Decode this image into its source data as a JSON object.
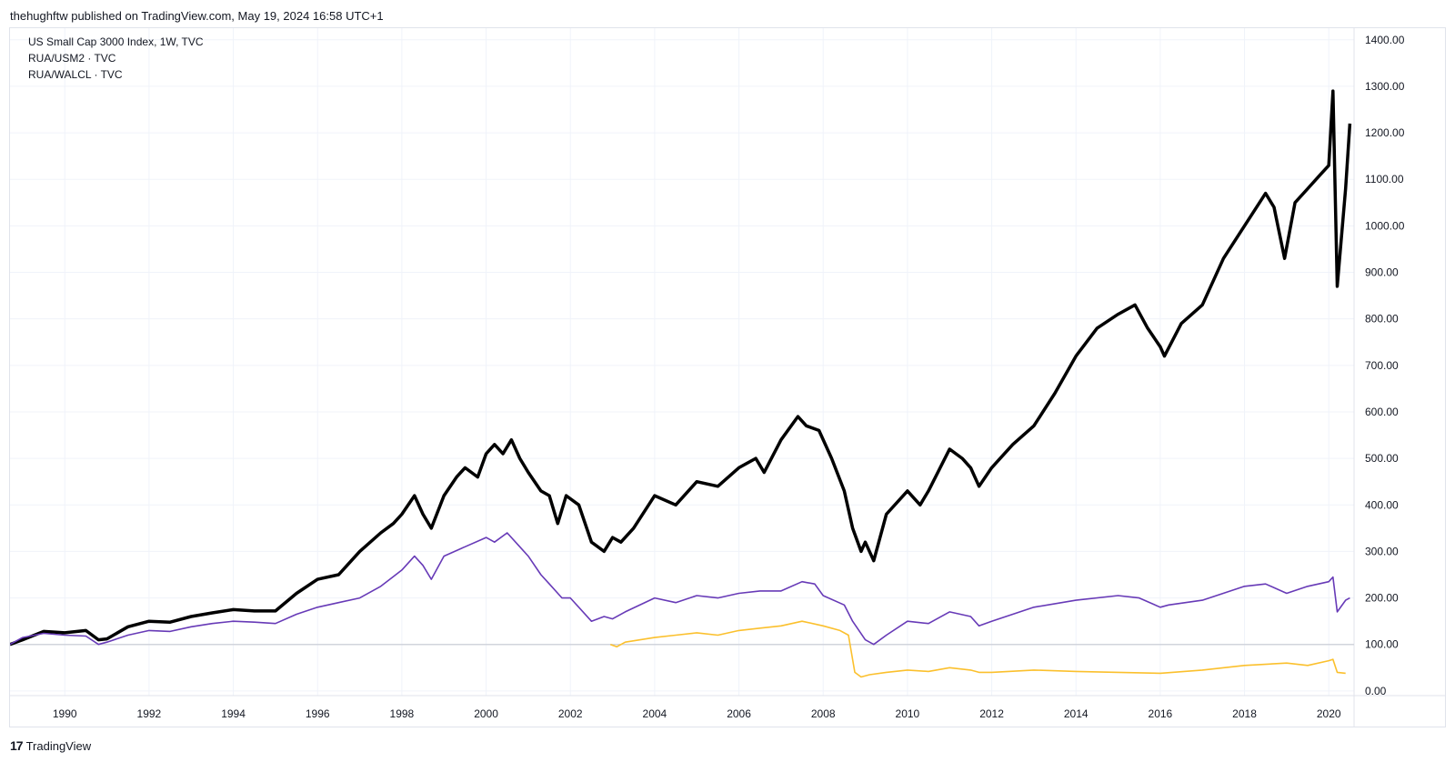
{
  "header": {
    "text": "thehughftw published on TradingView.com, May 19, 2024 16:58 UTC+1"
  },
  "legend": [
    "US Small Cap 3000 Index, 1W, TVC",
    "RUA/USM2 · TVC",
    "RUA/WALCL · TVC"
  ],
  "footer": {
    "logo": "17",
    "brand": "TradingView"
  },
  "colors": {
    "main": "#000000",
    "usm2": "#673ab7",
    "walcl": "#fbc02d",
    "baseline": "#d1d4dc",
    "grid": "#f0f3fa"
  },
  "chart_data": {
    "type": "line",
    "title": "",
    "xlabel": "",
    "ylabel": "",
    "xlim": [
      1988.7,
      2020.6
    ],
    "ylim": [
      -10,
      1425
    ],
    "grid": true,
    "x_ticks": [
      1990,
      1992,
      1994,
      1996,
      1998,
      2000,
      2002,
      2004,
      2006,
      2008,
      2010,
      2012,
      2014,
      2016,
      2018,
      2020
    ],
    "x_tick_labels": [
      "1990",
      "1992",
      "1994",
      "1996",
      "1998",
      "2000",
      "2002",
      "2004",
      "2006",
      "2008",
      "2010",
      "2012",
      "2014",
      "2016",
      "2018",
      "2020"
    ],
    "y_ticks": [
      0,
      100,
      200,
      300,
      400,
      500,
      600,
      700,
      800,
      900,
      1000,
      1100,
      1200,
      1300,
      1400
    ],
    "y_tick_labels": [
      "0.00",
      "100.00",
      "200.00",
      "300.00",
      "400.00",
      "500.00",
      "600.00",
      "700.00",
      "800.00",
      "900.00",
      "1000.00",
      "1100.00",
      "1200.00",
      "1300.00",
      "1400.00"
    ],
    "baseline": 100,
    "series": [
      {
        "name": "US Small Cap 3000 Index",
        "color": "#000000",
        "x": [
          1988.7,
          1989.0,
          1989.5,
          1990.0,
          1990.5,
          1990.8,
          1991.0,
          1991.5,
          1992.0,
          1992.5,
          1993.0,
          1993.5,
          1994.0,
          1994.5,
          1995.0,
          1995.5,
          1996.0,
          1996.5,
          1997.0,
          1997.5,
          1997.8,
          1998.0,
          1998.3,
          1998.5,
          1998.7,
          1999.0,
          1999.3,
          1999.5,
          1999.8,
          2000.0,
          2000.2,
          2000.4,
          2000.6,
          2000.8,
          2001.0,
          2001.3,
          2001.5,
          2001.7,
          2001.9,
          2002.2,
          2002.5,
          2002.8,
          2003.0,
          2003.2,
          2003.5,
          2004.0,
          2004.5,
          2005.0,
          2005.5,
          2006.0,
          2006.4,
          2006.6,
          2007.0,
          2007.4,
          2007.6,
          2007.9,
          2008.2,
          2008.5,
          2008.7,
          2008.9,
          2009.0,
          2009.2,
          2009.5,
          2010.0,
          2010.3,
          2010.5,
          2011.0,
          2011.3,
          2011.5,
          2011.7,
          2012.0,
          2012.5,
          2013.0,
          2013.5,
          2014.0,
          2014.5,
          2015.0,
          2015.4,
          2015.7,
          2016.0,
          2016.1,
          2016.5,
          2017.0,
          2017.5,
          2018.0,
          2018.5,
          2018.7,
          2018.95,
          2019.2,
          2019.5,
          2019.8,
          2020.0,
          2020.1,
          2020.2,
          2020.4,
          2020.5
        ],
        "y": [
          100,
          110,
          128,
          125,
          130,
          110,
          112,
          138,
          150,
          148,
          160,
          168,
          175,
          172,
          172,
          210,
          240,
          250,
          300,
          340,
          360,
          380,
          420,
          380,
          350,
          420,
          460,
          480,
          460,
          510,
          530,
          510,
          540,
          500,
          470,
          430,
          420,
          360,
          420,
          400,
          320,
          300,
          330,
          320,
          350,
          420,
          400,
          450,
          440,
          480,
          500,
          470,
          540,
          590,
          570,
          560,
          500,
          430,
          350,
          300,
          320,
          280,
          380,
          430,
          400,
          430,
          520,
          500,
          480,
          440,
          480,
          530,
          570,
          640,
          720,
          780,
          810,
          830,
          780,
          740,
          720,
          790,
          830,
          930,
          1000,
          1070,
          1040,
          930,
          1050,
          1080,
          1110,
          1130,
          1290,
          870,
          1080,
          1220
        ]
      },
      {
        "name": "RUA/USM2",
        "color": "#673ab7",
        "x": [
          1988.7,
          1989.0,
          1989.5,
          1990.0,
          1990.5,
          1990.8,
          1991.0,
          1991.5,
          1992.0,
          1992.5,
          1993.0,
          1993.5,
          1994.0,
          1994.5,
          1995.0,
          1995.5,
          1996.0,
          1996.5,
          1997.0,
          1997.5,
          1998.0,
          1998.3,
          1998.5,
          1998.7,
          1999.0,
          1999.5,
          2000.0,
          2000.2,
          2000.5,
          2000.8,
          2001.0,
          2001.3,
          2001.5,
          2001.8,
          2002.0,
          2002.5,
          2002.8,
          2003.0,
          2003.3,
          2004.0,
          2004.5,
          2005.0,
          2005.5,
          2006.0,
          2006.5,
          2007.0,
          2007.5,
          2007.8,
          2008.0,
          2008.5,
          2008.7,
          2009.0,
          2009.2,
          2009.5,
          2010.0,
          2010.5,
          2011.0,
          2011.5,
          2011.7,
          2012.0,
          2013.0,
          2014.0,
          2015.0,
          2015.5,
          2016.0,
          2016.2,
          2017.0,
          2018.0,
          2018.5,
          2019.0,
          2019.5,
          2020.0,
          2020.1,
          2020.2,
          2020.4,
          2020.5
        ],
        "y": [
          100,
          115,
          124,
          120,
          118,
          100,
          105,
          120,
          130,
          128,
          138,
          145,
          150,
          148,
          145,
          165,
          180,
          190,
          200,
          225,
          260,
          290,
          270,
          240,
          290,
          310,
          330,
          320,
          340,
          310,
          290,
          250,
          230,
          200,
          200,
          150,
          160,
          155,
          170,
          200,
          190,
          205,
          200,
          210,
          215,
          215,
          235,
          230,
          205,
          185,
          150,
          110,
          100,
          120,
          150,
          145,
          170,
          160,
          140,
          150,
          180,
          195,
          205,
          200,
          180,
          185,
          195,
          225,
          230,
          210,
          225,
          235,
          245,
          170,
          195,
          200
        ]
      },
      {
        "name": "RUA/WALCL",
        "color": "#fbc02d",
        "x": [
          2002.95,
          2003.1,
          2003.3,
          2004.0,
          2004.5,
          2005.0,
          2005.5,
          2006.0,
          2006.5,
          2007.0,
          2007.5,
          2008.0,
          2008.4,
          2008.6,
          2008.75,
          2008.9,
          2009.1,
          2009.5,
          2010.0,
          2010.5,
          2011.0,
          2011.5,
          2011.7,
          2012.0,
          2013.0,
          2014.0,
          2015.0,
          2016.0,
          2017.0,
          2018.0,
          2019.0,
          2019.5,
          2020.0,
          2020.1,
          2020.2,
          2020.4
        ],
        "y": [
          100,
          95,
          105,
          115,
          120,
          125,
          120,
          130,
          135,
          140,
          150,
          140,
          130,
          120,
          40,
          30,
          35,
          40,
          45,
          42,
          50,
          45,
          40,
          40,
          45,
          42,
          40,
          38,
          45,
          55,
          60,
          55,
          65,
          68,
          40,
          38
        ]
      }
    ]
  }
}
